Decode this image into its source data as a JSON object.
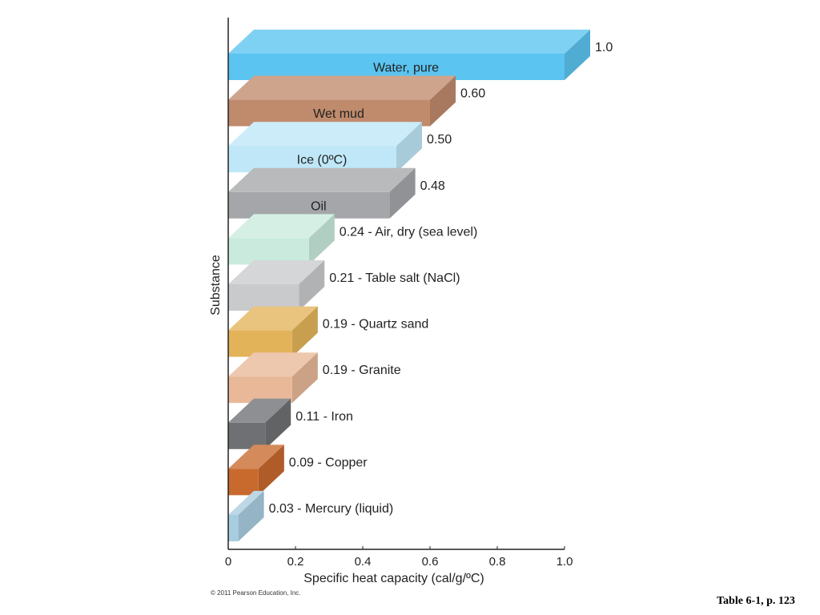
{
  "chart_data": {
    "type": "bar",
    "orientation": "horizontal",
    "style": "3d-bars",
    "title": "",
    "xlabel": "Specific heat capacity (cal/g/ºC)",
    "ylabel": "Substance",
    "xlim": [
      0,
      1.0
    ],
    "xticks": [
      "0",
      "0.2",
      "0.4",
      "0.6",
      "0.8",
      "1.0"
    ],
    "grid": false,
    "legend": "none",
    "bars": [
      {
        "value": 1.0,
        "value_label": "1.0",
        "inside_label": "Water, pure",
        "outside_label": "1.0",
        "color": "#5bc4f0"
      },
      {
        "value": 0.6,
        "value_label": "0.60",
        "inside_label": "Wet mud",
        "outside_label": "0.60",
        "color": "#c08a6c"
      },
      {
        "value": 0.5,
        "value_label": "0.50",
        "inside_label": "Ice (0ºC)",
        "outside_label": "0.50",
        "color": "#bfe7f8"
      },
      {
        "value": 0.48,
        "value_label": "0.48",
        "inside_label": "Oil",
        "outside_label": "0.48",
        "color": "#a4a6a9"
      },
      {
        "value": 0.24,
        "value_label": "0.24",
        "inside_label": "",
        "outside_label": "0.24 - Air, dry (sea level)",
        "color": "#c9eadd"
      },
      {
        "value": 0.21,
        "value_label": "0.21",
        "inside_label": "",
        "outside_label": "0.21 - Table salt (NaCl)",
        "color": "#c8cacc"
      },
      {
        "value": 0.19,
        "value_label": "0.19",
        "inside_label": "",
        "outside_label": "0.19 - Quartz sand",
        "color": "#e3b35a"
      },
      {
        "value": 0.19,
        "value_label": "0.19",
        "inside_label": "",
        "outside_label": "0.19 - Granite",
        "color": "#e8b898"
      },
      {
        "value": 0.11,
        "value_label": "0.11",
        "inside_label": "",
        "outside_label": "0.11 - Iron",
        "color": "#6e7073"
      },
      {
        "value": 0.09,
        "value_label": "0.09",
        "inside_label": "",
        "outside_label": "0.09 - Copper",
        "color": "#c8692d"
      },
      {
        "value": 0.03,
        "value_label": "0.03",
        "inside_label": "",
        "outside_label": "0.03 - Mercury (liquid)",
        "color": "#a9cde0"
      }
    ]
  },
  "footer": {
    "copyright": "© 2011 Pearson Education, Inc.",
    "caption": "Table 6-1, p. 123"
  }
}
